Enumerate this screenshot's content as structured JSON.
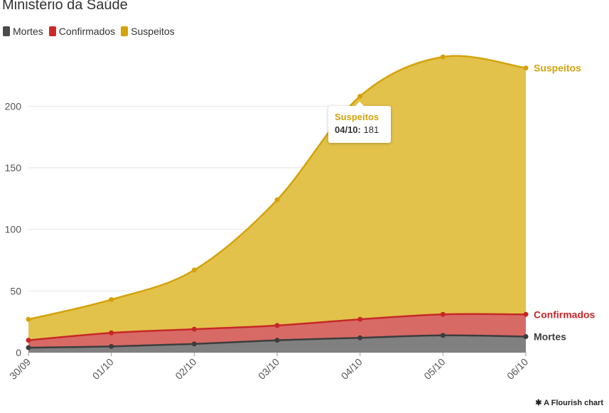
{
  "title": "Ministério da Saúde",
  "legend": [
    {
      "label": "Mortes",
      "color": "#4a4a4a"
    },
    {
      "label": "Confirmados",
      "color": "#cc2a2a"
    },
    {
      "label": "Suspeitos",
      "color": "#d4a20a"
    }
  ],
  "tooltip": {
    "series": "Suspeitos",
    "date": "04/10:",
    "value": "181"
  },
  "credit": "A Flourish chart",
  "chart_data": {
    "type": "area",
    "stacked": true,
    "title": "Ministério da Saúde",
    "categories": [
      "30/09",
      "01/10",
      "02/10",
      "03/10",
      "04/10",
      "05/10",
      "06/10"
    ],
    "ylim": [
      0,
      240
    ],
    "yticks": [
      0,
      50,
      100,
      150,
      200
    ],
    "grid": true,
    "series": [
      {
        "name": "Mortes",
        "values": [
          4,
          5,
          7,
          10,
          12,
          14,
          13
        ],
        "line": "#3d3d3d",
        "fill": "#808080"
      },
      {
        "name": "Confirmados",
        "values": [
          6,
          11,
          12,
          12,
          15,
          17,
          18
        ],
        "line": "#c62828",
        "fill": "#d86a66"
      },
      {
        "name": "Suspeitos",
        "values": [
          17,
          27,
          48,
          102,
          181,
          209,
          200
        ],
        "line": "#d4a20a",
        "fill": "#e2c24a"
      }
    ]
  }
}
